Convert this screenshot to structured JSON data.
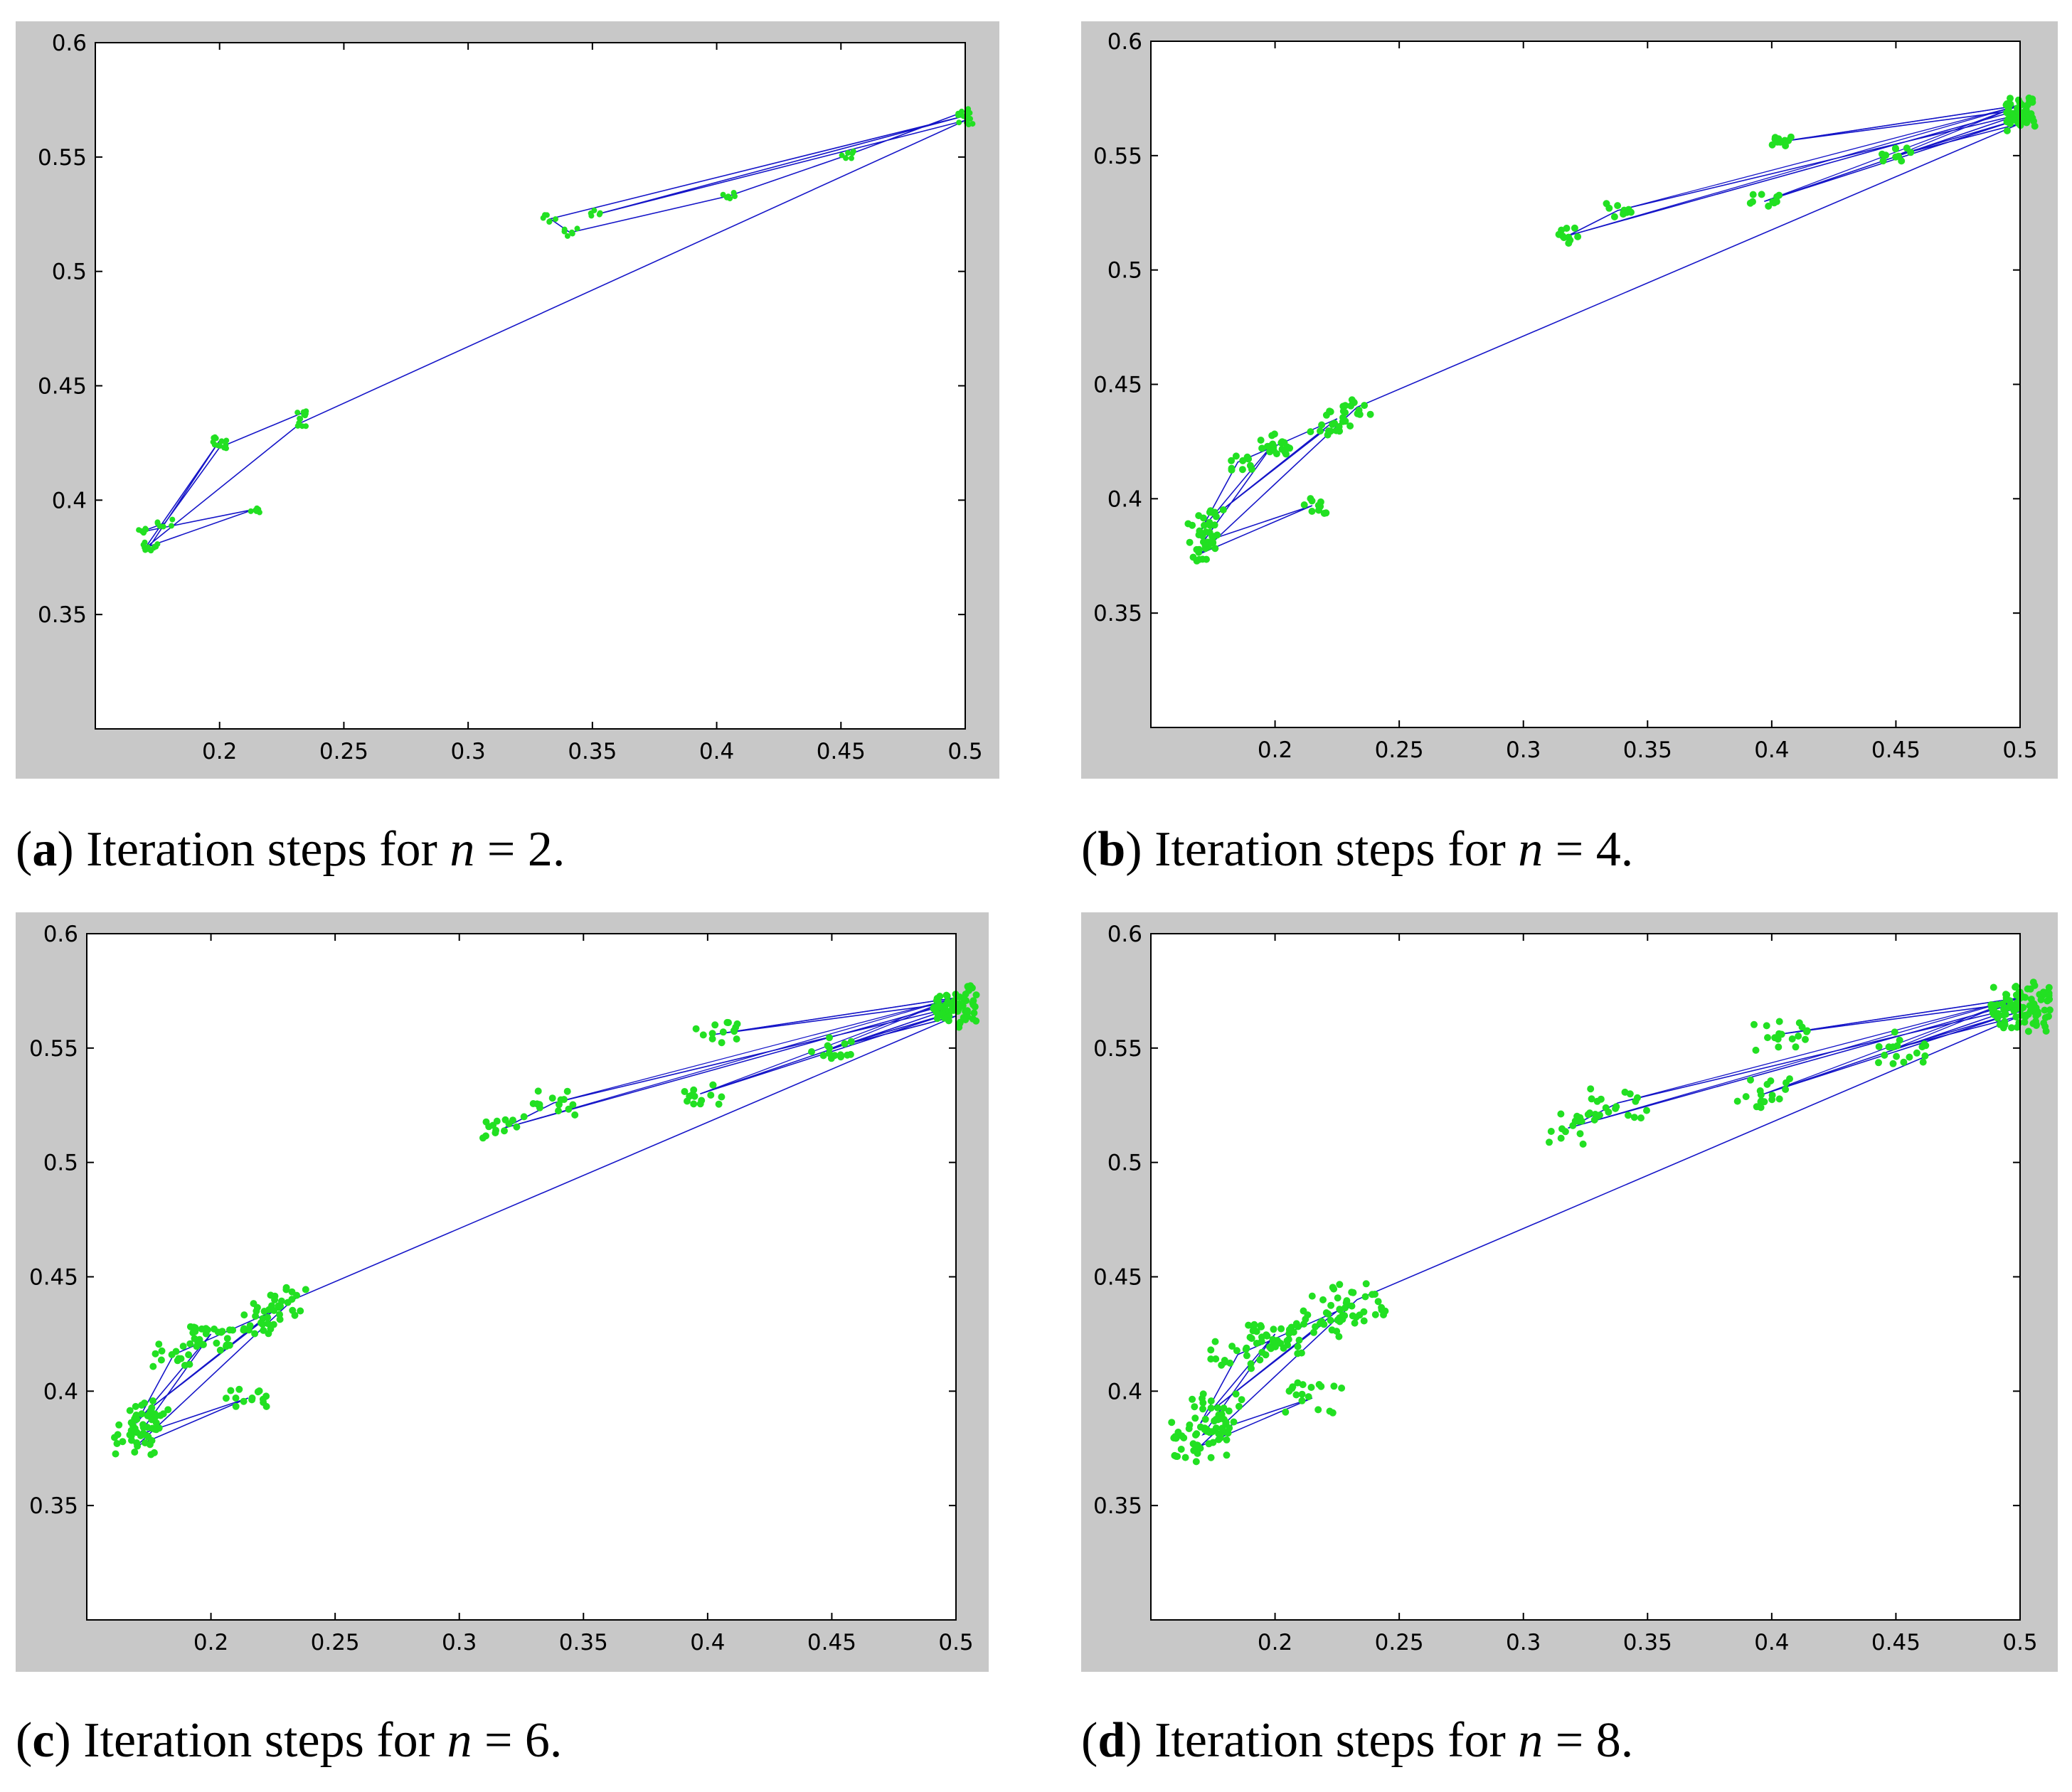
{
  "chart_data": [
    {
      "type": "line",
      "panel": "a",
      "caption_letter": "a",
      "caption_text": "Iteration steps for",
      "caption_var": "n",
      "caption_eq": "=",
      "caption_value": "2",
      "caption_end": ".",
      "xlim": [
        0.15,
        0.5
      ],
      "ylim": [
        0.3,
        0.6
      ],
      "xticks": [
        "0.2",
        "0.25",
        "0.3",
        "0.35",
        "0.4",
        "0.45",
        "0.5"
      ],
      "yticks": [
        "0.35",
        "0.4",
        "0.45",
        "0.5",
        "0.55",
        "0.6"
      ],
      "density": 1,
      "path": [
        [
          0.5,
          0.57
        ],
        [
          0.453,
          0.551
        ],
        [
          0.405,
          0.533
        ],
        [
          0.341,
          0.517
        ],
        [
          0.333,
          0.523
        ],
        [
          0.5,
          0.568
        ],
        [
          0.352,
          0.525
        ],
        [
          0.5,
          0.566
        ],
        [
          0.233,
          0.434
        ],
        [
          0.17,
          0.379
        ],
        [
          0.2,
          0.426
        ],
        [
          0.172,
          0.38
        ],
        [
          0.214,
          0.396
        ],
        [
          0.168,
          0.386
        ],
        [
          0.178,
          0.39
        ],
        [
          0.2,
          0.423
        ],
        [
          0.233,
          0.438
        ]
      ]
    },
    {
      "type": "line",
      "panel": "b",
      "caption_letter": "b",
      "caption_text": "Iteration steps for",
      "caption_var": "n",
      "caption_eq": "=",
      "caption_value": "4",
      "caption_end": ".",
      "xlim": [
        0.15,
        0.5
      ],
      "ylim": [
        0.3,
        0.6
      ],
      "xticks": [
        "0.2",
        "0.25",
        "0.3",
        "0.35",
        "0.4",
        "0.45",
        "0.5"
      ],
      "yticks": [
        "0.35",
        "0.4",
        "0.45",
        "0.5",
        "0.55",
        "0.6"
      ],
      "density": 2,
      "path": [
        [
          0.5,
          0.572
        ],
        [
          0.403,
          0.556
        ],
        [
          0.5,
          0.57
        ],
        [
          0.318,
          0.515
        ],
        [
          0.338,
          0.526
        ],
        [
          0.5,
          0.568
        ],
        [
          0.397,
          0.53
        ],
        [
          0.5,
          0.566
        ],
        [
          0.45,
          0.55
        ],
        [
          0.5,
          0.564
        ],
        [
          0.233,
          0.44
        ],
        [
          0.17,
          0.376
        ],
        [
          0.215,
          0.397
        ],
        [
          0.171,
          0.381
        ],
        [
          0.2,
          0.425
        ],
        [
          0.17,
          0.386
        ],
        [
          0.185,
          0.416
        ],
        [
          0.2,
          0.423
        ],
        [
          0.225,
          0.435
        ],
        [
          0.175,
          0.392
        ],
        [
          0.22,
          0.43
        ]
      ]
    },
    {
      "type": "line",
      "panel": "c",
      "caption_letter": "c",
      "caption_text": "Iteration steps for",
      "caption_var": "n",
      "caption_eq": "=",
      "caption_value": "6",
      "caption_end": ".",
      "xlim": [
        0.15,
        0.5
      ],
      "ylim": [
        0.3,
        0.6
      ],
      "xticks": [
        "0.2",
        "0.25",
        "0.3",
        "0.35",
        "0.4",
        "0.45",
        "0.5"
      ],
      "yticks": [
        "0.35",
        "0.4",
        "0.45",
        "0.5",
        "0.55",
        "0.6"
      ],
      "density": 3,
      "path": [
        [
          0.5,
          0.572
        ],
        [
          0.403,
          0.556
        ],
        [
          0.5,
          0.57
        ],
        [
          0.318,
          0.515
        ],
        [
          0.338,
          0.526
        ],
        [
          0.5,
          0.568
        ],
        [
          0.397,
          0.53
        ],
        [
          0.5,
          0.566
        ],
        [
          0.45,
          0.55
        ],
        [
          0.5,
          0.564
        ],
        [
          0.233,
          0.44
        ],
        [
          0.17,
          0.376
        ],
        [
          0.215,
          0.397
        ],
        [
          0.171,
          0.381
        ],
        [
          0.2,
          0.425
        ],
        [
          0.17,
          0.386
        ],
        [
          0.185,
          0.416
        ],
        [
          0.2,
          0.423
        ],
        [
          0.225,
          0.435
        ],
        [
          0.175,
          0.392
        ],
        [
          0.22,
          0.43
        ]
      ]
    },
    {
      "type": "line",
      "panel": "d",
      "caption_letter": "d",
      "caption_text": "Iteration steps for",
      "caption_var": "n",
      "caption_eq": "=",
      "caption_value": "8",
      "caption_end": ".",
      "xlim": [
        0.15,
        0.5
      ],
      "ylim": [
        0.3,
        0.6
      ],
      "xticks": [
        "0.2",
        "0.25",
        "0.3",
        "0.35",
        "0.4",
        "0.45",
        "0.5"
      ],
      "yticks": [
        "0.35",
        "0.4",
        "0.45",
        "0.5",
        "0.55",
        "0.6"
      ],
      "density": 4,
      "path": [
        [
          0.5,
          0.572
        ],
        [
          0.403,
          0.556
        ],
        [
          0.5,
          0.57
        ],
        [
          0.318,
          0.515
        ],
        [
          0.338,
          0.526
        ],
        [
          0.5,
          0.568
        ],
        [
          0.397,
          0.53
        ],
        [
          0.5,
          0.566
        ],
        [
          0.45,
          0.55
        ],
        [
          0.5,
          0.564
        ],
        [
          0.233,
          0.44
        ],
        [
          0.17,
          0.376
        ],
        [
          0.215,
          0.397
        ],
        [
          0.171,
          0.381
        ],
        [
          0.2,
          0.425
        ],
        [
          0.17,
          0.386
        ],
        [
          0.185,
          0.416
        ],
        [
          0.2,
          0.423
        ],
        [
          0.225,
          0.435
        ],
        [
          0.175,
          0.392
        ],
        [
          0.22,
          0.43
        ]
      ]
    }
  ],
  "colors": {
    "line": "#1515c8",
    "marker": "#22e022",
    "frame": "#c8c8c8"
  }
}
